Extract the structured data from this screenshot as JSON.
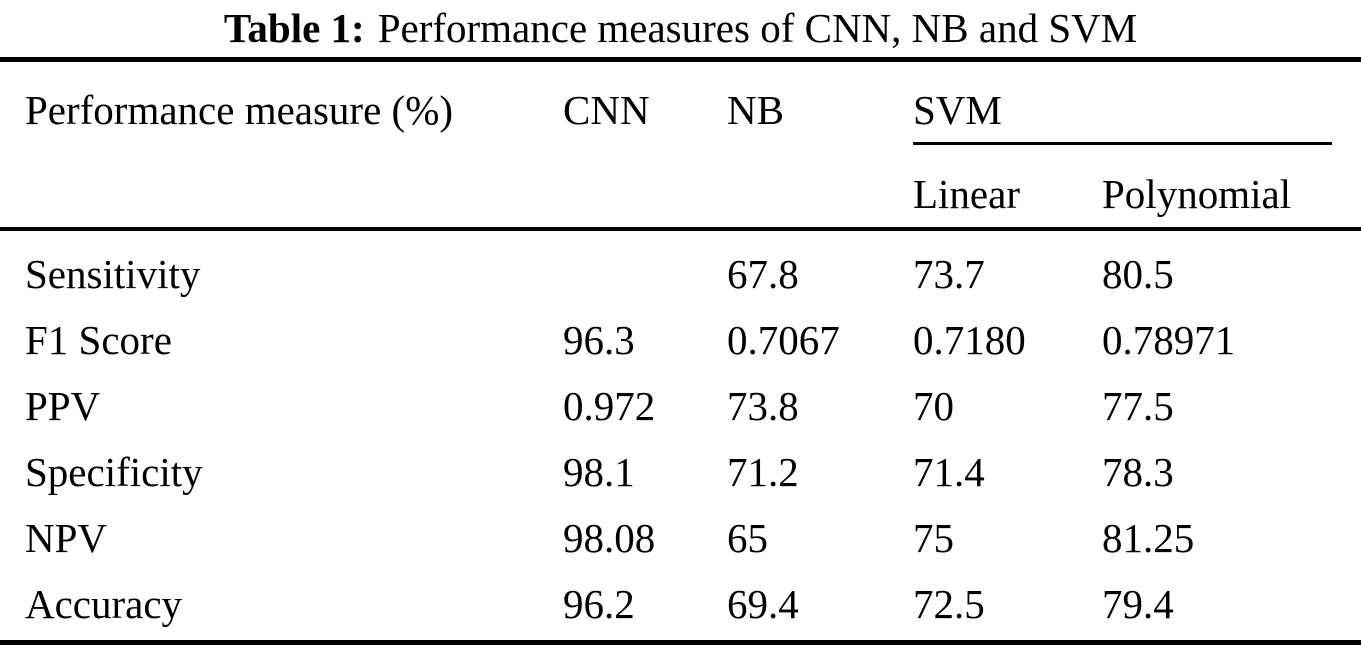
{
  "caption": {
    "label": "Table 1:",
    "text": "Performance measures of CNN, NB and SVM"
  },
  "table": {
    "header": {
      "measure": "Performance measure (%)",
      "cnn": "CNN",
      "nb": "NB",
      "svm_group": "SVM",
      "svm_linear": "Linear",
      "svm_polynomial": "Polynomial"
    },
    "rows": [
      {
        "label": "Sensitivity",
        "cnn": "",
        "nb": "67.8",
        "linear": "73.7",
        "polynomial": "80.5"
      },
      {
        "label": "F1 Score",
        "cnn": "96.3",
        "nb": "0.7067",
        "linear": "0.7180",
        "polynomial": "0.78971"
      },
      {
        "label": "PPV",
        "cnn": "0.972",
        "nb": "73.8",
        "linear": "70",
        "polynomial": "77.5"
      },
      {
        "label": "Specificity",
        "cnn": "98.1",
        "nb": "71.2",
        "linear": "71.4",
        "polynomial": "78.3"
      },
      {
        "label": "NPV",
        "cnn": "98.08",
        "nb": "65",
        "linear": "75",
        "polynomial": "81.25"
      },
      {
        "label": "Accuracy",
        "cnn": "96.2",
        "nb": "69.4",
        "linear": "72.5",
        "polynomial": "79.4"
      }
    ]
  },
  "chart_data": {
    "type": "table",
    "title": "Table 1: Performance measures of CNN, NB and SVM",
    "columns": [
      "Performance measure (%)",
      "CNN",
      "NB",
      "SVM Linear",
      "SVM Polynomial"
    ],
    "rows": [
      [
        "Sensitivity",
        "",
        "67.8",
        "73.7",
        "80.5"
      ],
      [
        "F1 Score",
        "96.3",
        "0.7067",
        "0.7180",
        "0.78971"
      ],
      [
        "PPV",
        "0.972",
        "73.8",
        "70",
        "77.5"
      ],
      [
        "Specificity",
        "98.1",
        "71.2",
        "71.4",
        "78.3"
      ],
      [
        "NPV",
        "98.08",
        "65",
        "75",
        "81.25"
      ],
      [
        "Accuracy",
        "96.2",
        "69.4",
        "72.5",
        "79.4"
      ]
    ]
  }
}
